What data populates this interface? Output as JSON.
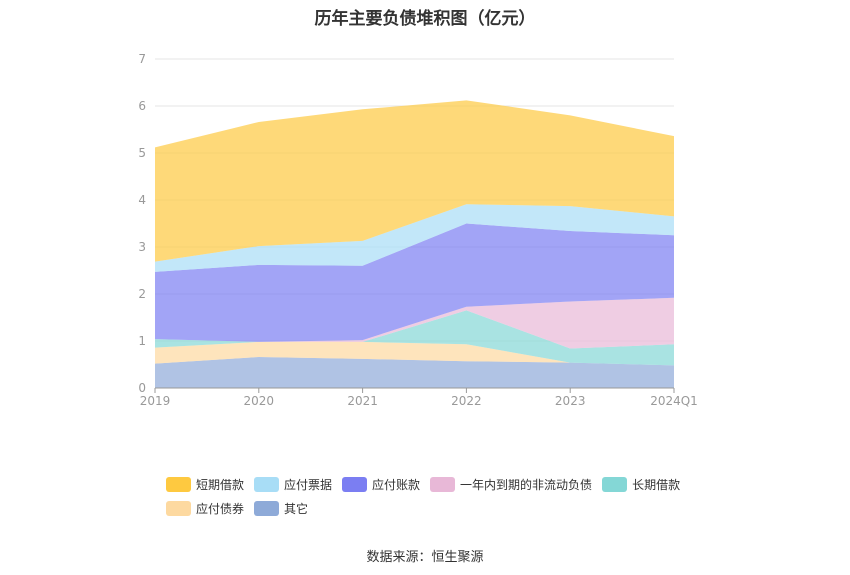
{
  "title": "历年主要负债堆积图（亿元）",
  "source": "数据来源：恒生聚源",
  "chart_data": {
    "type": "area",
    "stacked": true,
    "categories": [
      "2019",
      "2020",
      "2021",
      "2022",
      "2023",
      "2024Q1"
    ],
    "ylim": [
      0,
      7
    ],
    "yticks": [
      0,
      1,
      2,
      3,
      4,
      5,
      6,
      7
    ],
    "grid": true,
    "legend_position": "bottom",
    "series": [
      {
        "name": "其它",
        "color": "#8eaad8",
        "values": [
          0.52,
          0.66,
          0.62,
          0.57,
          0.54,
          0.48
        ]
      },
      {
        "name": "应付债券",
        "color": "#fdd9a0",
        "values": [
          0.34,
          0.32,
          0.36,
          0.36,
          0.0,
          0.0
        ]
      },
      {
        "name": "长期借款",
        "color": "#84d7d6",
        "values": [
          0.18,
          0.0,
          0.0,
          0.72,
          0.3,
          0.45
        ]
      },
      {
        "name": "一年内到期的非流动负债",
        "color": "#e8b8d7",
        "values": [
          0.0,
          0.0,
          0.04,
          0.08,
          1.0,
          0.99
        ]
      },
      {
        "name": "应付账款",
        "color": "#7b7ef2",
        "values": [
          1.43,
          1.64,
          1.58,
          1.77,
          1.5,
          1.33
        ]
      },
      {
        "name": "应付票据",
        "color": "#a8ddf6",
        "values": [
          0.22,
          0.4,
          0.53,
          0.41,
          0.53,
          0.4
        ]
      },
      {
        "name": "短期借款",
        "color": "#fec940",
        "values": [
          2.43,
          2.64,
          2.8,
          2.21,
          1.93,
          1.71
        ]
      }
    ]
  },
  "legend": [
    [
      {
        "label": "短期借款",
        "color": "#fec940"
      },
      {
        "label": "应付票据",
        "color": "#a8ddf6"
      },
      {
        "label": "应付账款",
        "color": "#7b7ef2"
      },
      {
        "label": "一年内到期的非流动负债",
        "color": "#e8b8d7"
      },
      {
        "label": "长期借款",
        "color": "#84d7d6"
      }
    ],
    [
      {
        "label": "应付债券",
        "color": "#fdd9a0"
      },
      {
        "label": "其它",
        "color": "#8eaad8"
      }
    ]
  ]
}
